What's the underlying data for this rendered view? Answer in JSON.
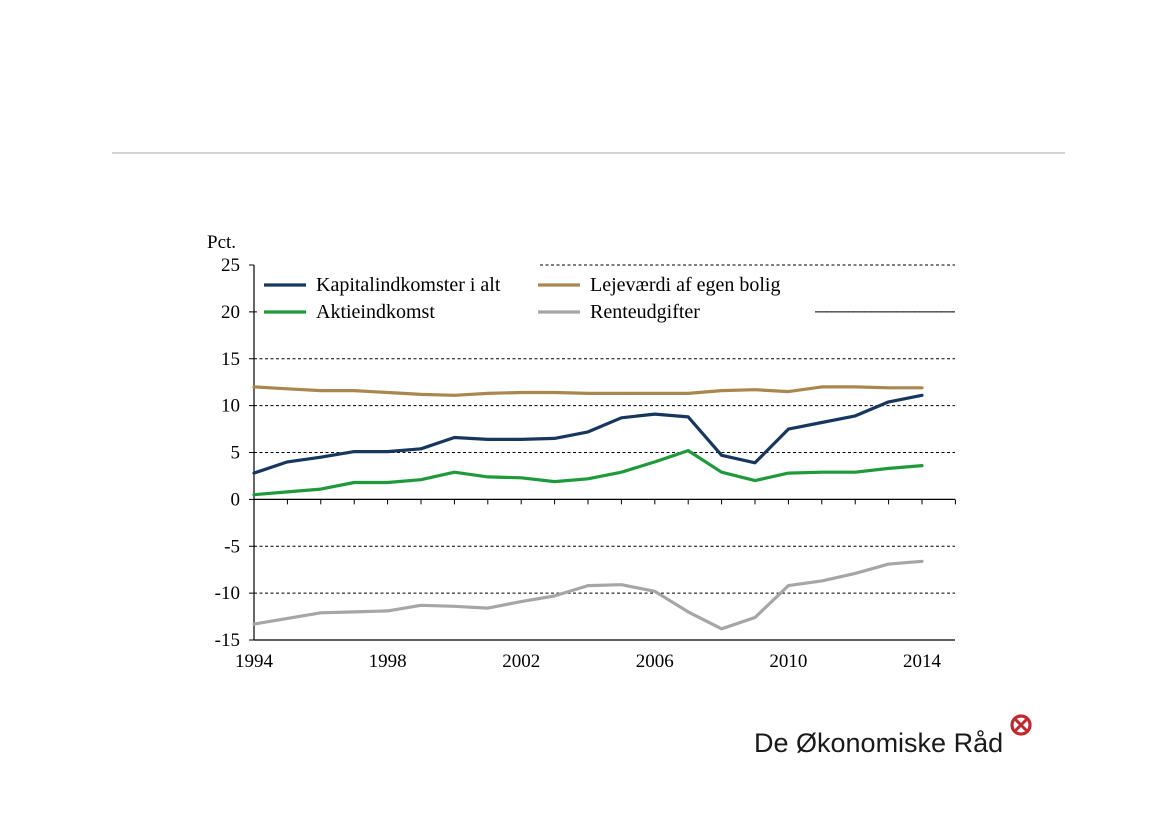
{
  "chart_data": {
    "type": "line",
    "ylabel": "Pct.",
    "ylim": [
      -15,
      25
    ],
    "yticks": [
      25,
      20,
      15,
      10,
      5,
      0,
      -5,
      -10,
      -15
    ],
    "xlim": [
      1994,
      2015
    ],
    "xticks": [
      1994,
      1998,
      2002,
      2006,
      2010,
      2014
    ],
    "grid": "horizontal dashed",
    "legend_position": "top-left",
    "x": [
      1994,
      1995,
      1996,
      1997,
      1998,
      1999,
      2000,
      2001,
      2002,
      2003,
      2004,
      2005,
      2006,
      2007,
      2008,
      2009,
      2010,
      2011,
      2012,
      2013,
      2014
    ],
    "series": [
      {
        "name": "Kapitalindkomster i alt",
        "color": "#17375e",
        "values": [
          2.8,
          4.0,
          4.5,
          5.1,
          5.1,
          5.4,
          6.6,
          6.4,
          6.4,
          6.5,
          7.2,
          8.7,
          9.1,
          8.8,
          4.7,
          3.9,
          7.5,
          8.2,
          8.9,
          10.4,
          11.1
        ]
      },
      {
        "name": "Lejeværdi af egen bolig",
        "color": "#a8884e",
        "values": [
          12.0,
          11.8,
          11.6,
          11.6,
          11.4,
          11.2,
          11.1,
          11.3,
          11.4,
          11.4,
          11.3,
          11.3,
          11.3,
          11.3,
          11.6,
          11.7,
          11.5,
          12.0,
          12.0,
          11.9,
          11.9
        ]
      },
      {
        "name": "Aktieindkomst",
        "color": "#1f9a3a",
        "values": [
          0.5,
          0.8,
          1.1,
          1.8,
          1.8,
          2.1,
          2.9,
          2.4,
          2.3,
          1.9,
          2.2,
          2.9,
          4.0,
          5.2,
          2.9,
          2.0,
          2.8,
          2.9,
          2.9,
          3.3,
          3.6
        ]
      },
      {
        "name": "Renteudgifter",
        "color": "#a6a6a6",
        "values": [
          -13.3,
          -12.7,
          -12.1,
          -12.0,
          -11.9,
          -11.3,
          -11.4,
          -11.6,
          -10.9,
          -10.3,
          -9.2,
          -9.1,
          -9.8,
          -12.0,
          -13.8,
          -12.6,
          -9.2,
          -8.7,
          -7.9,
          -6.9,
          -6.6
        ]
      }
    ]
  },
  "logo": {
    "text": "De Økonomiske Råd",
    "mark_color": "#c0282d"
  }
}
